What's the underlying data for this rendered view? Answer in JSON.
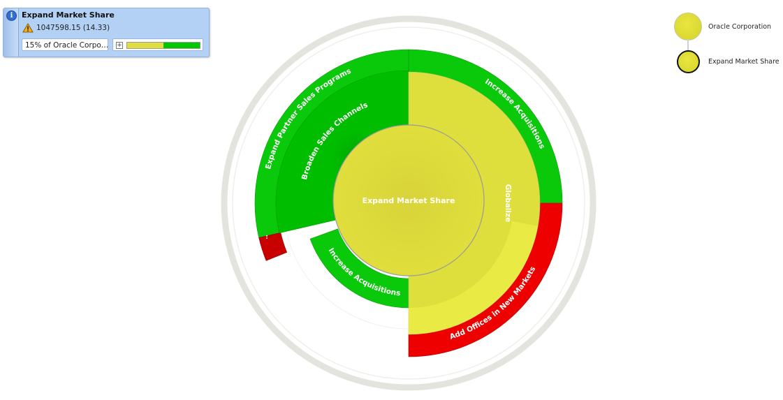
{
  "info_card": {
    "title": "Expand Market Share",
    "value_text": "1047598.15 (14.33)",
    "subtitle": "15% of Oracle Corpo…",
    "progress": 0.5,
    "progress_color_left": "#dede40",
    "progress_color_right": "#00c800",
    "icons": [
      "info-icon",
      "warning-icon",
      "expand-icon"
    ]
  },
  "legend": {
    "root_label": "Oracle Corporation",
    "focus_label": "Expand Market Share"
  },
  "sunburst": {
    "center_label": "Expand Market Share",
    "segment_labels": {
      "expand_partner": "Expand Partner Sales Programs",
      "broaden_sales": "Broaden Sales Channels",
      "increase_acq_outer": "Increase Acquisitions",
      "increase_acq_inner": "Increase Acquisitions",
      "globalize": "Globalize",
      "add_offices": "Add Offices in New Markets",
      "small_red": ":"
    },
    "colors": {
      "green": "#0ac80a",
      "green_dark": "#00b400",
      "red": "#ee0000",
      "red_dark": "#c80000",
      "yellow": "#dede3c",
      "yellow_light": "#ecec46",
      "ring": "#e7e7e2"
    }
  }
}
